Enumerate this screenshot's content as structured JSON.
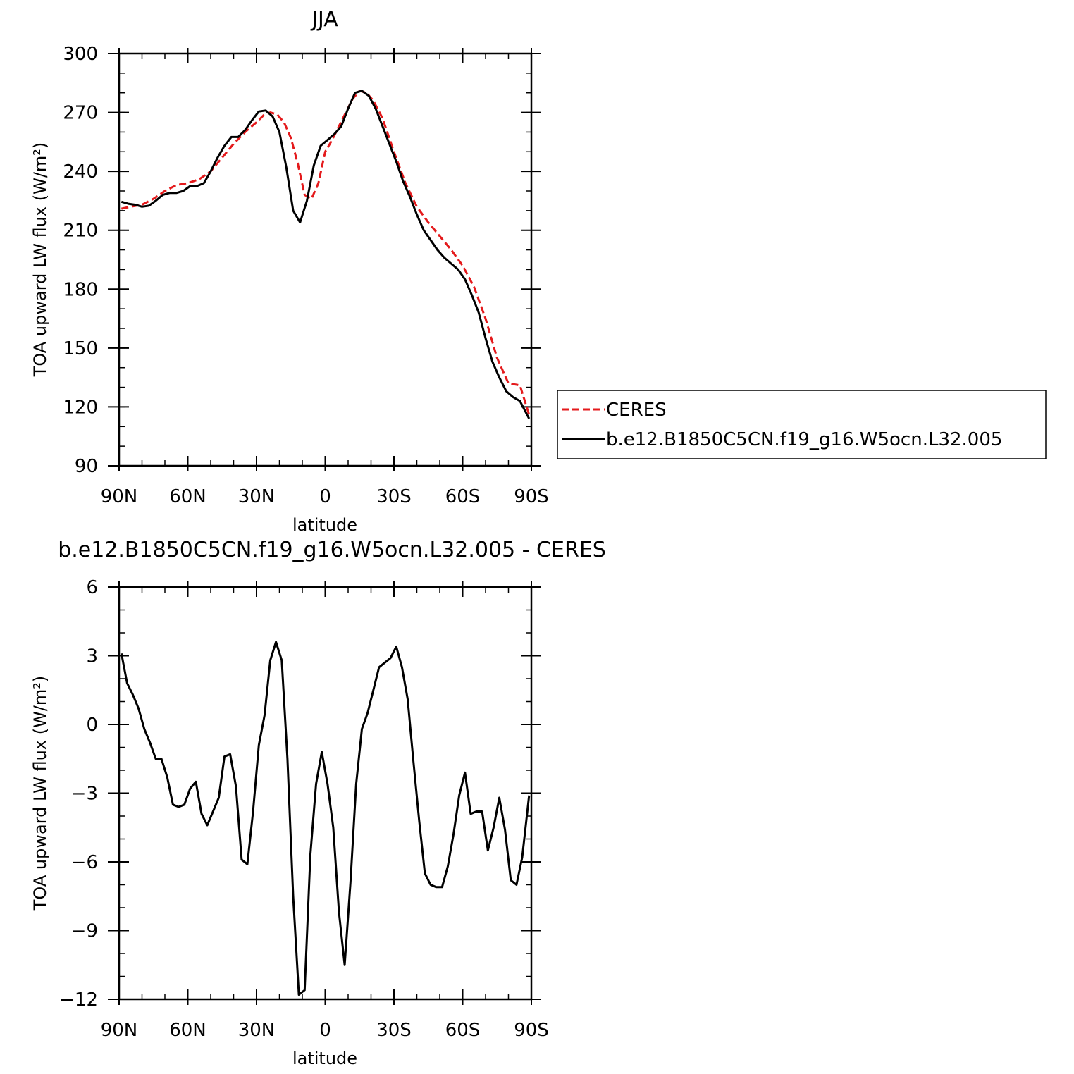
{
  "chart_data": [
    {
      "type": "line",
      "title": "JJA",
      "xlabel": "latitude",
      "ylabel": "TOA upward LW flux (W/m²)",
      "ylim": [
        90,
        300
      ],
      "xlim": [
        -90,
        90
      ],
      "x_ticks": [
        {
          "value": -90,
          "label": "90N"
        },
        {
          "value": -60,
          "label": "60N"
        },
        {
          "value": -30,
          "label": "30N"
        },
        {
          "value": 0,
          "label": "0"
        },
        {
          "value": 30,
          "label": "30S"
        },
        {
          "value": 60,
          "label": "60S"
        },
        {
          "value": 90,
          "label": "90S"
        }
      ],
      "y_ticks": [
        90,
        120,
        150,
        180,
        210,
        240,
        270,
        300
      ],
      "legend": {
        "placement": "right",
        "entries": [
          "CERES",
          "b.e12.B1850C5CN.f19_g16.W5ocn.L32.005"
        ]
      },
      "series": [
        {
          "name": "CERES",
          "color": "#e41a1c",
          "dash": true,
          "x": [
            -89,
            -85,
            -80,
            -75,
            -70,
            -65,
            -60,
            -55,
            -50,
            -45,
            -40,
            -35,
            -30,
            -27,
            -24,
            -21,
            -18,
            -15,
            -12,
            -9,
            -6,
            -3,
            0,
            3,
            6,
            9,
            12,
            15,
            18,
            21,
            25,
            30,
            35,
            40,
            45,
            50,
            55,
            60,
            65,
            70,
            75,
            80,
            85,
            89
          ],
          "values": [
            221,
            222,
            223,
            226,
            230,
            233,
            234,
            236,
            240,
            247,
            254,
            260,
            265,
            268.5,
            270,
            269,
            265,
            257,
            244,
            228,
            226,
            234,
            250,
            256,
            263,
            270,
            277,
            281,
            280,
            276,
            267,
            250,
            234,
            222,
            214,
            207,
            200,
            192,
            181,
            165,
            145,
            132,
            131,
            116
          ]
        },
        {
          "name": "b.e12.B1850C5CN.f19_g16.W5ocn.L32.005",
          "color": "#000000",
          "dash": false,
          "x": [
            -89,
            -86,
            -83,
            -80,
            -77,
            -74,
            -71,
            -68,
            -65,
            -62,
            -59,
            -56,
            -53,
            -50,
            -47,
            -44,
            -41,
            -38,
            -35,
            -32,
            -29,
            -26,
            -23,
            -20,
            -17,
            -14,
            -11,
            -8,
            -5,
            -2,
            1,
            4,
            7,
            10,
            13,
            16,
            19,
            22,
            25,
            28,
            31,
            34,
            37,
            40,
            43,
            46,
            49,
            52,
            55,
            58,
            61,
            64,
            67,
            70,
            73,
            76,
            79,
            82,
            85,
            89
          ],
          "values": [
            224.5,
            223.5,
            223,
            222,
            222.5,
            225,
            228,
            229,
            229,
            230,
            232.5,
            232.5,
            234,
            240,
            247,
            253,
            257.5,
            257.5,
            261,
            266,
            270.5,
            271,
            268,
            260,
            242,
            220,
            214,
            225,
            243,
            253,
            256,
            259,
            263,
            272,
            280,
            281,
            278.5,
            272,
            263,
            254,
            245,
            235,
            227,
            218,
            210,
            205,
            200,
            196,
            193,
            190,
            185,
            177,
            168,
            155,
            143,
            135,
            128,
            125,
            123,
            114
          ]
        }
      ]
    },
    {
      "type": "line",
      "title": "b.e12.B1850C5CN.f19_g16.W5ocn.L32.005 - CERES",
      "xlabel": "latitude",
      "ylabel": "TOA upward LW flux (W/m²)",
      "ylim": [
        -12,
        6
      ],
      "xlim": [
        -90,
        90
      ],
      "x_ticks": [
        {
          "value": -90,
          "label": "90N"
        },
        {
          "value": -60,
          "label": "60N"
        },
        {
          "value": -30,
          "label": "30N"
        },
        {
          "value": 0,
          "label": "0"
        },
        {
          "value": 30,
          "label": "30S"
        },
        {
          "value": 60,
          "label": "60S"
        },
        {
          "value": 90,
          "label": "90S"
        }
      ],
      "y_ticks": [
        -12,
        -9,
        -6,
        -3,
        0,
        3,
        6
      ],
      "series": [
        {
          "color": "#000000",
          "dash": false,
          "x": [
            -89,
            -86.5,
            -84,
            -81.5,
            -79,
            -76.5,
            -74,
            -71.5,
            -69,
            -66.5,
            -64,
            -61.5,
            -59,
            -56.5,
            -54,
            -51.5,
            -49,
            -46.5,
            -44,
            -41.5,
            -39,
            -36.5,
            -34,
            -31.5,
            -29,
            -26.5,
            -24,
            -21.5,
            -19,
            -16.5,
            -14,
            -11.5,
            -9,
            -6.5,
            -4,
            -1.5,
            1,
            3.5,
            6,
            8.5,
            11,
            13.5,
            16,
            18.5,
            21,
            23.5,
            26,
            28.5,
            31,
            33.5,
            36,
            38.5,
            41,
            43.5,
            46,
            48.5,
            51,
            53.5,
            56,
            58.5,
            61,
            63.5,
            66,
            68.5,
            71,
            73.5,
            76,
            78.5,
            81,
            83.5,
            86,
            89
          ],
          "values": [
            3.1,
            1.8,
            1.3,
            0.7,
            -0.2,
            -0.8,
            -1.5,
            -1.5,
            -2.3,
            -3.5,
            -3.6,
            -3.5,
            -2.8,
            -2.5,
            -3.9,
            -4.4,
            -3.8,
            -3.2,
            -1.4,
            -1.3,
            -2.7,
            -5.9,
            -6.1,
            -3.8,
            -0.9,
            0.4,
            2.8,
            3.6,
            2.8,
            -1.5,
            -7.5,
            -11.8,
            -11.6,
            -5.7,
            -2.6,
            -1.2,
            -2.6,
            -4.5,
            -8.2,
            -10.5,
            -6.9,
            -2.6,
            -0.2,
            0.5,
            1.5,
            2.5,
            2.7,
            2.9,
            3.4,
            2.5,
            1.1,
            -1.6,
            -4.2,
            -6.5,
            -7.0,
            -7.1,
            -7.1,
            -6.2,
            -4.8,
            -3.1,
            -2.1,
            -3.9,
            -3.8,
            -3.8,
            -5.5,
            -4.5,
            -3.2,
            -4.6,
            -6.8,
            -7.0,
            -5.8,
            -3.1
          ]
        }
      ]
    }
  ]
}
